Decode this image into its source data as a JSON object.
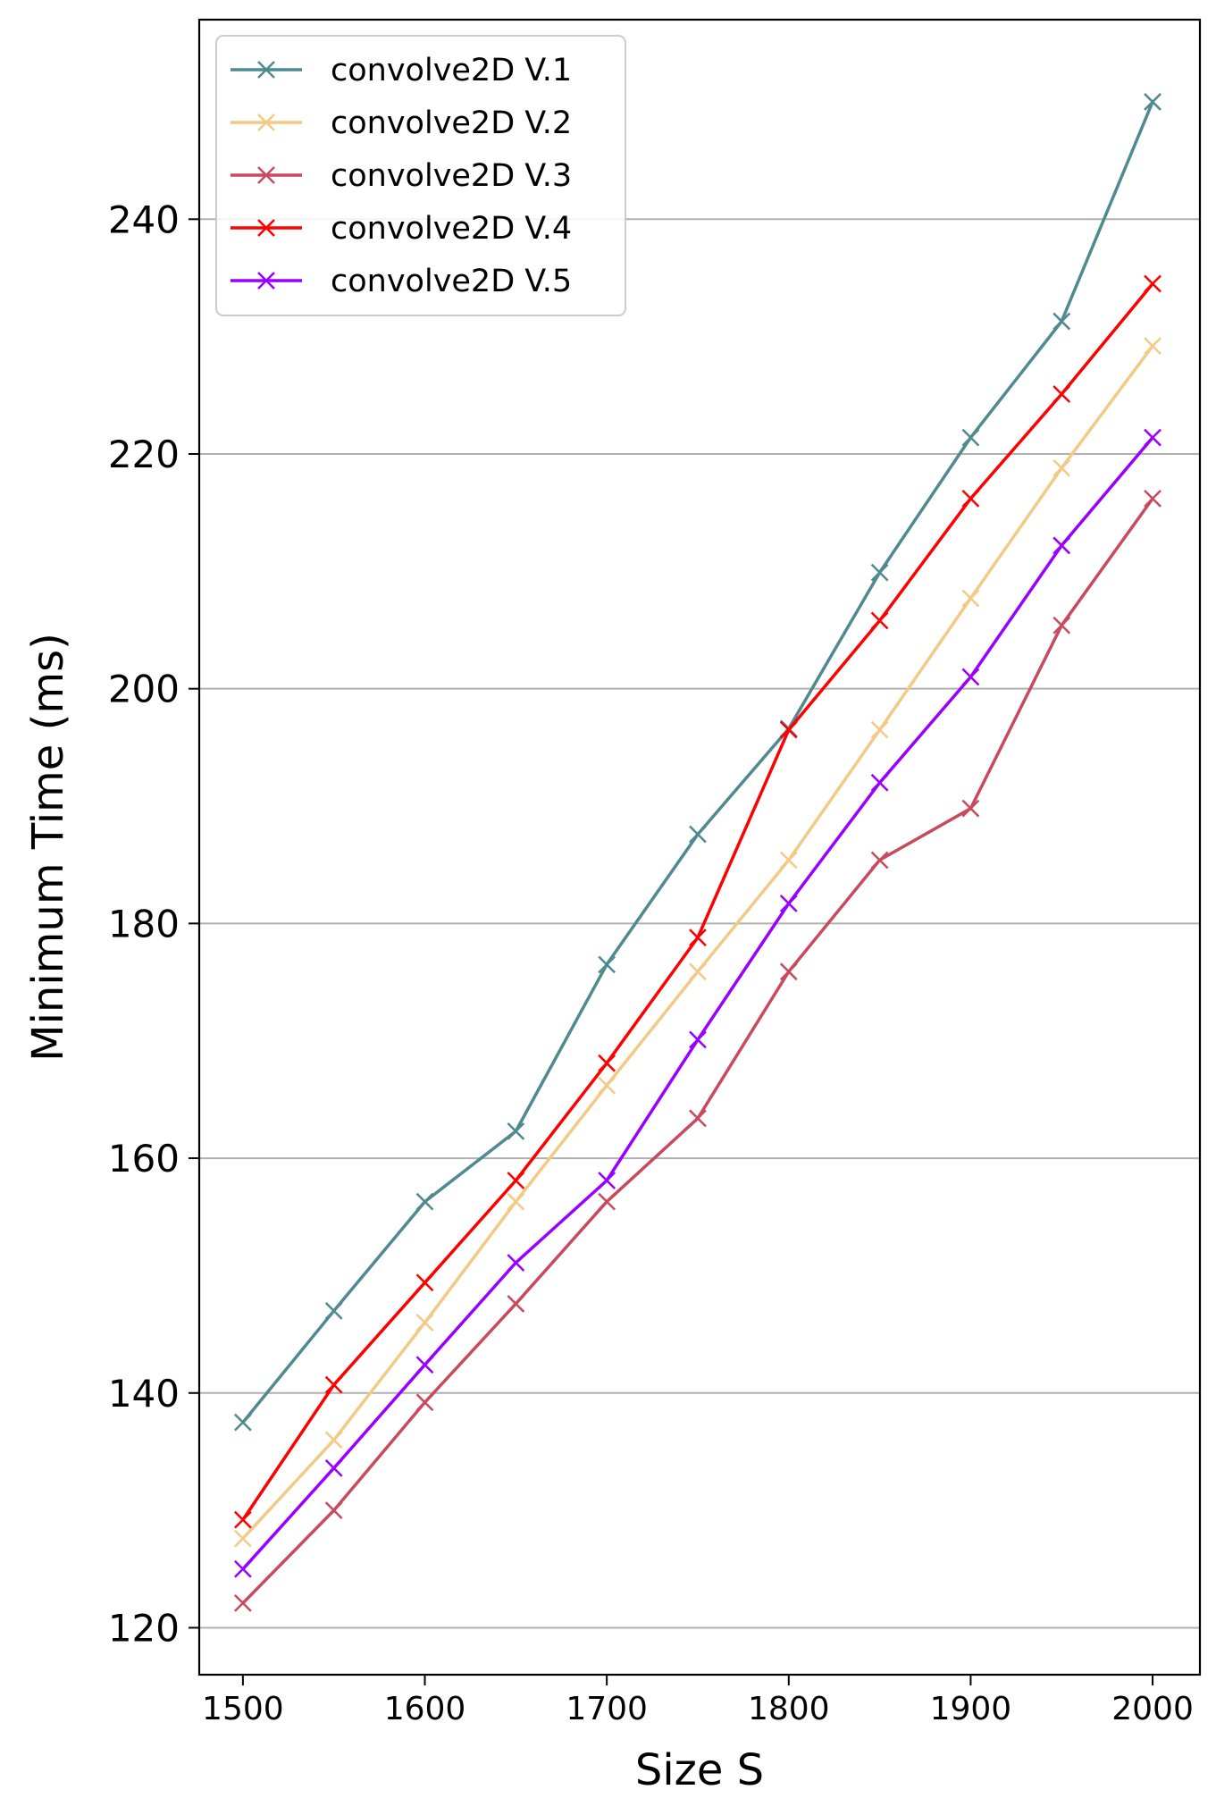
{
  "chart_data": {
    "type": "line",
    "title": "",
    "xlabel": "Size S",
    "ylabel": "Minimum Time (ms)",
    "xlim": [
      1476,
      2026
    ],
    "ylim": [
      116,
      257
    ],
    "xticks": [
      1500,
      1600,
      1700,
      1800,
      1900,
      2000
    ],
    "yticks": [
      120,
      140,
      160,
      180,
      200,
      220,
      240
    ],
    "grid": "horizontal",
    "legend": "top-left",
    "marker": "x",
    "x": [
      1500,
      1550,
      1600,
      1650,
      1700,
      1750,
      1800,
      1850,
      1900,
      1950,
      2000
    ],
    "series": [
      {
        "name": "convolve2D V.1",
        "color": "#4e8a8f",
        "values": [
          137.5,
          147,
          156.3,
          162.3,
          176.5,
          187.6,
          196.6,
          209.9,
          221.4,
          231.3,
          250
        ]
      },
      {
        "name": "convolve2D V.2",
        "color": "#f2ca86",
        "values": [
          127.6,
          136,
          146,
          156.3,
          166.2,
          175.9,
          185.4,
          196.5,
          207.7,
          218.8,
          229.2
        ]
      },
      {
        "name": "convolve2D V.3",
        "color": "#c94a5e",
        "values": [
          122.1,
          130,
          139.2,
          147.6,
          156.3,
          163.4,
          175.9,
          185.4,
          189.8,
          205.4,
          216.2
        ]
      },
      {
        "name": "convolve2D V.4",
        "color": "#ff0000",
        "values": [
          129.2,
          140.7,
          149.4,
          158.1,
          168.1,
          178.8,
          196.5,
          205.8,
          216.2,
          225.1,
          234.5
        ]
      },
      {
        "name": "convolve2D V.5",
        "color": "#9900ff",
        "values": [
          125,
          133.6,
          142.4,
          151.1,
          158.1,
          170.1,
          181.7,
          192,
          201,
          212.2,
          221.4
        ]
      }
    ]
  }
}
